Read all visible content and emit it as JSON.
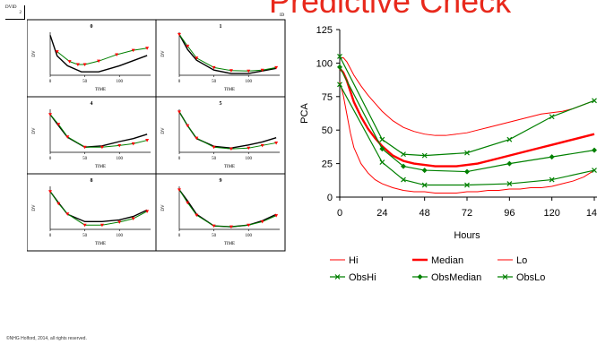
{
  "slide": {
    "title": "Predictive Check",
    "dvid_tag": "DVID",
    "dvid_value": "2",
    "id_tag": "ID",
    "copyright": "©NHG Holford, 2014, all rights reserved."
  },
  "colors": {
    "title": "#e8291c",
    "prediction": "#ff0000",
    "observed": "#008000",
    "panel_model": "#000000",
    "panel_obs_points": "#ff0000",
    "panel_obs_line": "#008000"
  },
  "chart_data": [
    {
      "type": "line",
      "layout": "3x2 panel grid",
      "panels": [
        {
          "label": "0",
          "model": [
            [
              0,
              93
            ],
            [
              10,
              45
            ],
            [
              25,
              22
            ],
            [
              45,
              8
            ],
            [
              70,
              8
            ],
            [
              100,
              22
            ],
            [
              140,
              46
            ]
          ],
          "observed": [
            [
              10,
              55
            ],
            [
              28,
              32
            ],
            [
              40,
              25
            ],
            [
              50,
              25
            ],
            [
              70,
              33
            ],
            [
              96,
              48
            ],
            [
              120,
              58
            ],
            [
              140,
              63
            ]
          ]
        },
        {
          "label": "1",
          "model": [
            [
              0,
              95
            ],
            [
              12,
              60
            ],
            [
              25,
              35
            ],
            [
              50,
              12
            ],
            [
              75,
              4
            ],
            [
              100,
              4
            ],
            [
              120,
              10
            ],
            [
              140,
              16
            ]
          ],
          "observed": [
            [
              0,
              95
            ],
            [
              12,
              68
            ],
            [
              25,
              40
            ],
            [
              50,
              18
            ],
            [
              75,
              11
            ],
            [
              100,
              10
            ],
            [
              120,
              12
            ],
            [
              140,
              18
            ]
          ]
        },
        {
          "label": "4",
          "model": [
            [
              0,
              88
            ],
            [
              12,
              62
            ],
            [
              25,
              35
            ],
            [
              50,
              12
            ],
            [
              75,
              15
            ],
            [
              100,
              25
            ],
            [
              120,
              32
            ],
            [
              140,
              42
            ]
          ],
          "observed": [
            [
              0,
              88
            ],
            [
              12,
              65
            ],
            [
              25,
              36
            ],
            [
              50,
              12
            ],
            [
              75,
              12
            ],
            [
              100,
              16
            ],
            [
              120,
              20
            ],
            [
              140,
              28
            ]
          ]
        },
        {
          "label": "5",
          "model": [
            [
              0,
              94
            ],
            [
              12,
              62
            ],
            [
              25,
              32
            ],
            [
              50,
              14
            ],
            [
              75,
              10
            ],
            [
              100,
              17
            ],
            [
              120,
              24
            ],
            [
              140,
              34
            ]
          ],
          "observed": [
            [
              0,
              94
            ],
            [
              12,
              62
            ],
            [
              25,
              33
            ],
            [
              50,
              12
            ],
            [
              75,
              8
            ],
            [
              100,
              10
            ],
            [
              120,
              16
            ],
            [
              140,
              22
            ]
          ]
        },
        {
          "label": "8",
          "model": [
            [
              0,
              88
            ],
            [
              12,
              62
            ],
            [
              25,
              35
            ],
            [
              50,
              18
            ],
            [
              75,
              18
            ],
            [
              100,
              22
            ],
            [
              120,
              30
            ],
            [
              140,
              45
            ]
          ],
          "observed": [
            [
              0,
              88
            ],
            [
              12,
              60
            ],
            [
              25,
              36
            ],
            [
              50,
              10
            ],
            [
              75,
              10
            ],
            [
              100,
              17
            ],
            [
              120,
              25
            ],
            [
              140,
              42
            ]
          ]
        },
        {
          "label": "9",
          "model": [
            [
              0,
              92
            ],
            [
              12,
              66
            ],
            [
              25,
              35
            ],
            [
              50,
              8
            ],
            [
              75,
              6
            ],
            [
              100,
              10
            ],
            [
              120,
              20
            ],
            [
              140,
              35
            ]
          ],
          "observed": [
            [
              0,
              92
            ],
            [
              12,
              62
            ],
            [
              25,
              33
            ],
            [
              50,
              8
            ],
            [
              75,
              6
            ],
            [
              100,
              10
            ],
            [
              120,
              18
            ],
            [
              140,
              32
            ]
          ]
        }
      ],
      "ylabel": "DV",
      "xlabel": "TIME",
      "xticks": [
        0,
        50,
        100
      ],
      "xlim": [
        0,
        145
      ],
      "ylim": [
        0,
        100
      ]
    },
    {
      "type": "line",
      "xlabel": "Hours",
      "ylabel": "PCA",
      "xlim": [
        0,
        144
      ],
      "ylim": [
        0,
        125
      ],
      "xticks": [
        0,
        24,
        48,
        72,
        96,
        120,
        144
      ],
      "yticks": [
        0,
        25,
        50,
        75,
        100,
        125
      ],
      "grid": false,
      "legend_position": "bottom",
      "x": [
        0,
        2,
        4,
        6,
        8,
        12,
        16,
        20,
        24,
        30,
        36,
        42,
        48,
        54,
        60,
        66,
        72,
        78,
        84,
        90,
        96,
        102,
        108,
        114,
        120,
        126,
        132,
        138,
        144
      ],
      "series": [
        {
          "name": "Hi",
          "style": "thin-red",
          "values": [
            104,
            104,
            101,
            96,
            91,
            83,
            76,
            70,
            64,
            57,
            52,
            49,
            47,
            46,
            46,
            47,
            48,
            50,
            52,
            54,
            56,
            58,
            60,
            62,
            63,
            64,
            66,
            69,
            72
          ]
        },
        {
          "name": "Median",
          "style": "thick-red",
          "values": [
            96,
            93,
            87,
            79,
            71,
            60,
            51,
            44,
            38,
            31,
            27,
            25,
            24,
            23,
            23,
            23,
            24,
            25,
            27,
            29,
            31,
            33,
            35,
            37,
            39,
            41,
            43,
            45,
            47
          ]
        },
        {
          "name": "Lo",
          "style": "thin-red",
          "values": [
            86,
            76,
            62,
            48,
            37,
            25,
            18,
            13,
            10,
            7,
            5,
            4,
            4,
            3,
            3,
            3,
            4,
            4,
            5,
            5,
            6,
            6,
            7,
            7,
            8,
            10,
            12,
            15,
            20
          ]
        },
        {
          "name": "ObsHi",
          "style": "green-x",
          "values_at": [
            [
              0,
              105
            ],
            [
              24,
              43
            ],
            [
              36,
              32
            ],
            [
              48,
              31
            ],
            [
              72,
              33
            ],
            [
              96,
              43
            ],
            [
              120,
              60
            ],
            [
              144,
              72
            ]
          ]
        },
        {
          "name": "ObsMedian",
          "style": "green-diamond",
          "values_at": [
            [
              0,
              97
            ],
            [
              24,
              36
            ],
            [
              36,
              23
            ],
            [
              48,
              20
            ],
            [
              72,
              19
            ],
            [
              96,
              25
            ],
            [
              120,
              30
            ],
            [
              144,
              35
            ]
          ]
        },
        {
          "name": "ObsLo",
          "style": "green-x",
          "values_at": [
            [
              0,
              84
            ],
            [
              24,
              26
            ],
            [
              36,
              13
            ],
            [
              48,
              9
            ],
            [
              72,
              9
            ],
            [
              96,
              10
            ],
            [
              120,
              13
            ],
            [
              144,
              20
            ]
          ]
        }
      ]
    }
  ]
}
